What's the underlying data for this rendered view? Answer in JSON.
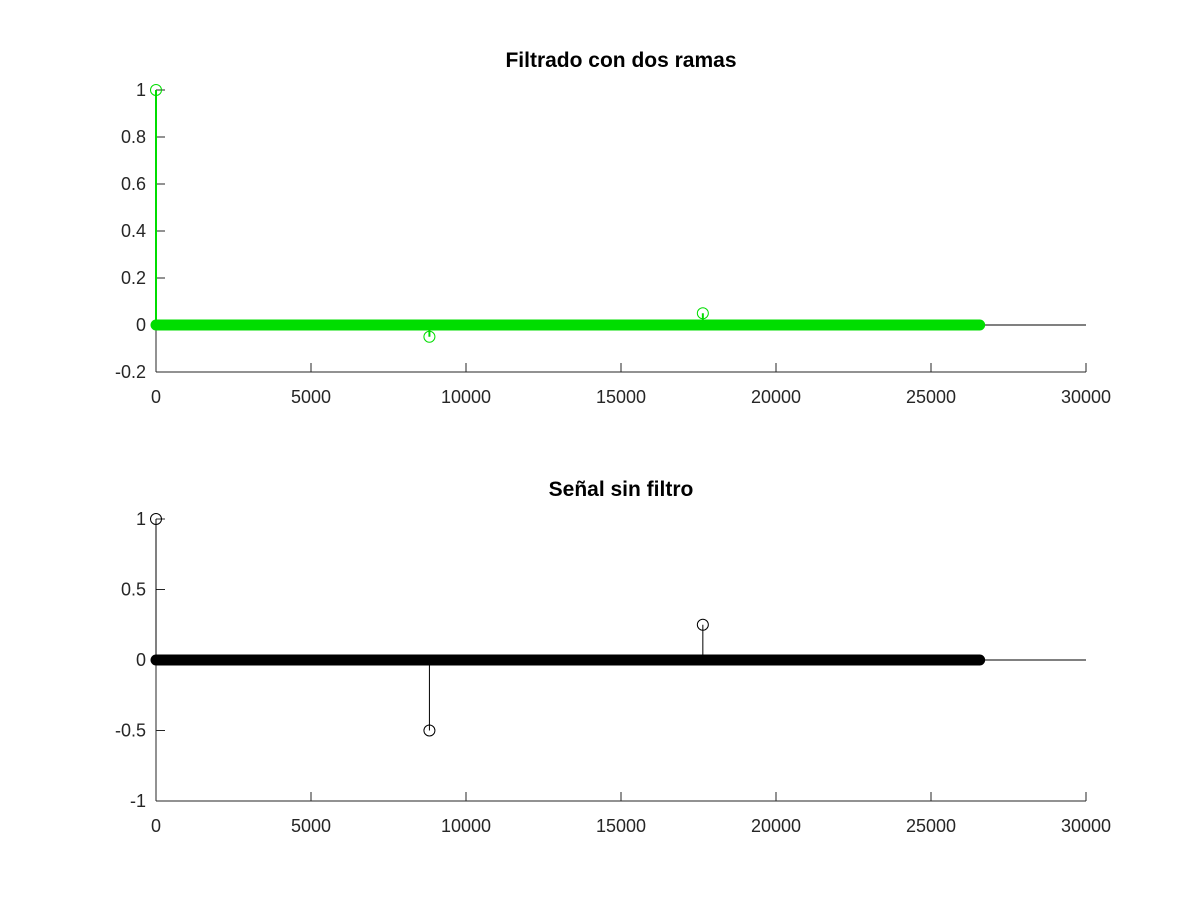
{
  "chart_data": [
    {
      "type": "stem",
      "title": "Filtrado con dos ramas",
      "xlabel": "",
      "ylabel": "",
      "xlim": [
        0,
        30000
      ],
      "ylim": [
        -0.2,
        1
      ],
      "xticks": [
        0,
        5000,
        10000,
        15000,
        20000,
        25000,
        30000
      ],
      "xtick_labels": [
        "0",
        "5000",
        "10000",
        "15000",
        "20000",
        "25000",
        "30000"
      ],
      "yticks": [
        -0.2,
        0,
        0.2,
        0.4,
        0.6,
        0.8,
        1
      ],
      "ytick_labels": [
        "-0.2",
        "0",
        "0.2",
        "0.4",
        "0.6",
        "0.8",
        "1"
      ],
      "color": "#00dd00",
      "baseline": 0,
      "zero_band": [
        0,
        26570
      ],
      "points": [
        {
          "x": 0,
          "y": 1
        },
        {
          "x": 8820,
          "y": -0.05
        },
        {
          "x": 17640,
          "y": 0.05
        }
      ]
    },
    {
      "type": "stem",
      "title": "Señal sin filtro",
      "xlabel": "",
      "ylabel": "",
      "xlim": [
        0,
        30000
      ],
      "ylim": [
        -1,
        1
      ],
      "xticks": [
        0,
        5000,
        10000,
        15000,
        20000,
        25000,
        30000
      ],
      "xtick_labels": [
        "0",
        "5000",
        "10000",
        "15000",
        "20000",
        "25000",
        "30000"
      ],
      "yticks": [
        -1,
        -0.5,
        0,
        0.5,
        1
      ],
      "ytick_labels": [
        "-1",
        "-0.5",
        "0",
        "0.5",
        "1"
      ],
      "color": "#000000",
      "baseline": 0,
      "zero_band": [
        0,
        26570
      ],
      "points": [
        {
          "x": 0,
          "y": 1
        },
        {
          "x": 8820,
          "y": -0.5
        },
        {
          "x": 17640,
          "y": 0.25
        }
      ]
    }
  ]
}
